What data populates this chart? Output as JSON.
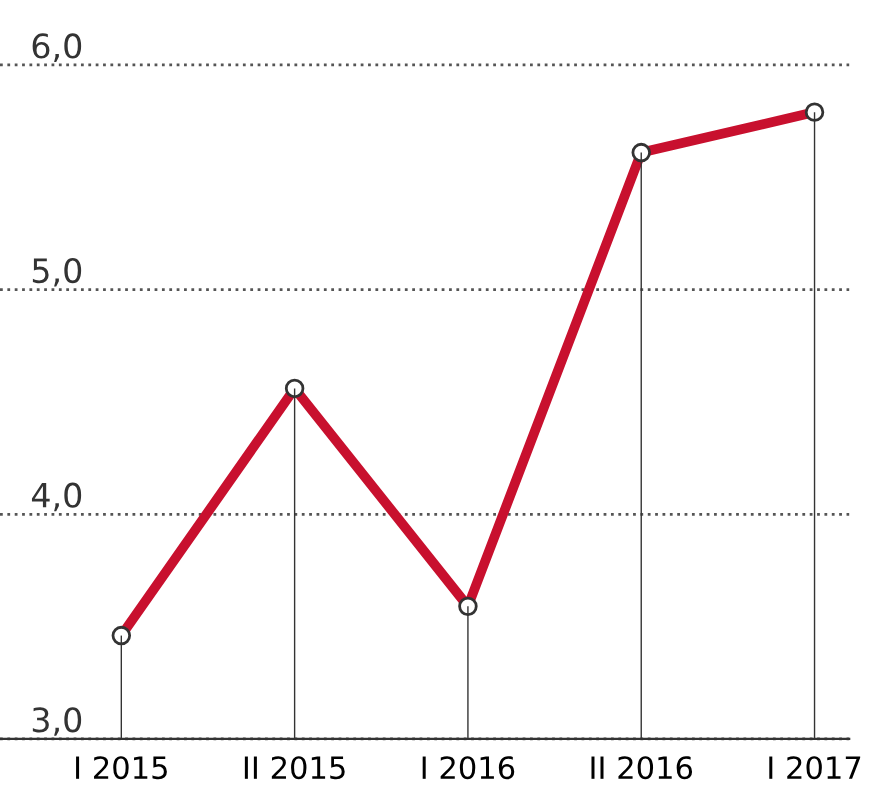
{
  "chart_data": {
    "type": "line",
    "categories": [
      "I 2015",
      "II 2015",
      "I 2016",
      "II 2016",
      "I 2017"
    ],
    "series": [
      {
        "type": "bar",
        "color": "#333333",
        "values": [
          3.46,
          4.56,
          3.59,
          5.61,
          5.79
        ]
      },
      {
        "color": "#c8102e",
        "marker": "circle",
        "values": [
          3.46,
          4.56,
          3.59,
          5.61,
          5.79
        ]
      }
    ],
    "ylim": [
      3.0,
      6.0
    ],
    "yticks": [
      {
        "value": 3.0,
        "label": "3,0"
      },
      {
        "value": 4.0,
        "label": "4,0"
      },
      {
        "value": 5.0,
        "label": "5,0"
      },
      {
        "value": 6.0,
        "label": "6,0"
      }
    ],
    "grid": "y",
    "line_style": "solid"
  }
}
